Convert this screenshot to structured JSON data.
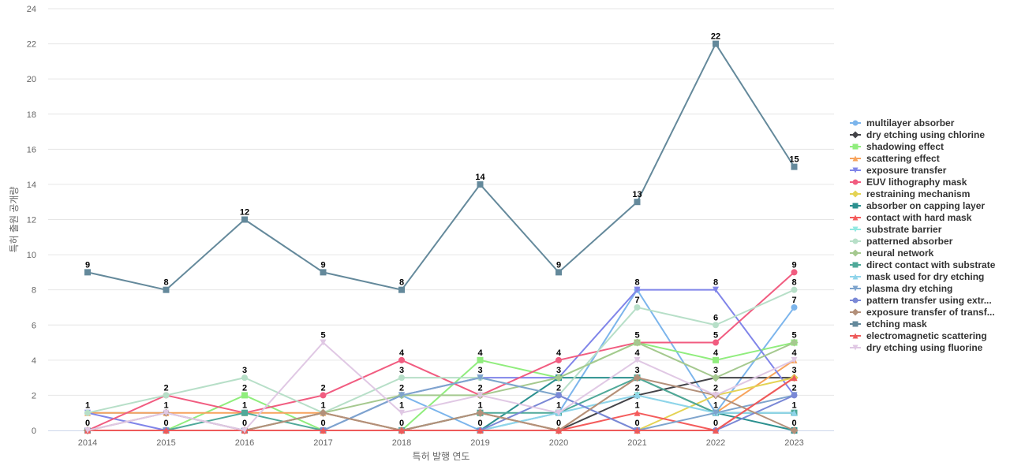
{
  "chart_data": {
    "type": "line",
    "xlabel": "특허 발행 연도",
    "ylabel": "특허 출원 공개량",
    "x": [
      "2014",
      "2015",
      "2016",
      "2017",
      "2018",
      "2019",
      "2020",
      "2021",
      "2022",
      "2023"
    ],
    "ylim": [
      0,
      24
    ],
    "yticks": [
      "0",
      "2",
      "4",
      "6",
      "8",
      "10",
      "12",
      "14",
      "16",
      "18",
      "20",
      "22",
      "24"
    ],
    "grid": true,
    "legend_position": "right",
    "series": [
      {
        "name": "multilayer absorber",
        "values": [
          1,
          1,
          0,
          0,
          2,
          0,
          1,
          8,
          1,
          7
        ],
        "color": "#7cb5ec",
        "marker": "circle"
      },
      {
        "name": "dry etching using chlorine",
        "values": [
          0,
          0,
          0,
          1,
          0,
          1,
          0,
          2,
          3,
          3
        ],
        "color": "#434348",
        "marker": "diamond"
      },
      {
        "name": "shadowing effect",
        "values": [
          0,
          0,
          2,
          0,
          0,
          4,
          3,
          5,
          4,
          5
        ],
        "color": "#90ed7d",
        "marker": "square"
      },
      {
        "name": "scattering effect",
        "values": [
          1,
          1,
          1,
          1,
          0,
          1,
          0,
          3,
          1,
          4
        ],
        "color": "#f7a35c",
        "marker": "triangle"
      },
      {
        "name": "exposure transfer",
        "values": [
          1,
          0,
          0,
          0,
          2,
          3,
          3,
          8,
          8,
          2
        ],
        "color": "#8085e9",
        "marker": "triangle-down"
      },
      {
        "name": "EUV lithography mask",
        "values": [
          0,
          2,
          1,
          2,
          4,
          2,
          4,
          5,
          5,
          9
        ],
        "color": "#f15c80",
        "marker": "circle"
      },
      {
        "name": "restraining mechanism",
        "values": [
          0,
          0,
          0,
          0,
          0,
          0,
          0,
          0,
          2,
          3
        ],
        "color": "#e4d354",
        "marker": "diamond"
      },
      {
        "name": "absorber on capping layer",
        "values": [
          0,
          0,
          0,
          0,
          0,
          0,
          3,
          3,
          1,
          0
        ],
        "color": "#2b908f",
        "marker": "square"
      },
      {
        "name": "contact with hard mask",
        "values": [
          0,
          0,
          0,
          0,
          0,
          0,
          0,
          1,
          0,
          3
        ],
        "color": "#f45b5b",
        "marker": "triangle"
      },
      {
        "name": "substrate barrier",
        "values": [
          0,
          0,
          0,
          0,
          0,
          0,
          1,
          2,
          1,
          1
        ],
        "color": "#91e8e1",
        "marker": "triangle-down"
      },
      {
        "name": "patterned absorber",
        "values": [
          1,
          2,
          3,
          1,
          3,
          3,
          2,
          7,
          6,
          8
        ],
        "color": "#b7dfc8",
        "marker": "circle"
      },
      {
        "name": "neural network",
        "values": [
          0,
          0,
          0,
          1,
          2,
          2,
          3,
          5,
          3,
          5
        ],
        "color": "#a5c98f",
        "marker": "diamond"
      },
      {
        "name": "direct contact with substrate",
        "values": [
          0,
          0,
          1,
          0,
          0,
          1,
          1,
          3,
          1,
          1
        ],
        "color": "#4fa999",
        "marker": "square"
      },
      {
        "name": "mask used for dry etching",
        "values": [
          0,
          0,
          0,
          0,
          0,
          0,
          1,
          2,
          1,
          1
        ],
        "color": "#8fd4ea",
        "marker": "triangle"
      },
      {
        "name": "plasma dry etching",
        "values": [
          0,
          0,
          0,
          0,
          2,
          3,
          2,
          0,
          1,
          2
        ],
        "color": "#7ea4cd",
        "marker": "triangle-down"
      },
      {
        "name": "pattern transfer using extr...",
        "values": [
          0,
          0,
          0,
          0,
          0,
          0,
          2,
          0,
          0,
          2
        ],
        "color": "#7a88d6",
        "marker": "circle"
      },
      {
        "name": "exposure transfer of transf...",
        "values": [
          0,
          1,
          0,
          1,
          0,
          1,
          0,
          3,
          2,
          0
        ],
        "color": "#b3907a",
        "marker": "diamond"
      },
      {
        "name": "etching mask",
        "values": [
          9,
          8,
          12,
          9,
          8,
          14,
          9,
          13,
          22,
          15
        ],
        "color": "#64899b",
        "marker": "square"
      },
      {
        "name": "electromagnetic scattering",
        "values": [
          0,
          0,
          0,
          0,
          0,
          0,
          0,
          0,
          0,
          3
        ],
        "color": "#ee5a5a",
        "marker": "triangle"
      },
      {
        "name": "dry etching using fluorine",
        "values": [
          0,
          1,
          0,
          5,
          1,
          2,
          1,
          4,
          2,
          4
        ],
        "color": "#e0c8e4",
        "marker": "triangle-down"
      }
    ],
    "data_labels": [
      {
        "x": "2014",
        "labels": [
          "9",
          "1",
          "0"
        ]
      },
      {
        "x": "2015",
        "labels": [
          "8",
          "2",
          "1",
          "0"
        ]
      },
      {
        "x": "2016",
        "labels": [
          "12",
          "3",
          "2",
          "1",
          "0"
        ]
      },
      {
        "x": "2017",
        "labels": [
          "9",
          "5",
          "2",
          "1",
          "0"
        ]
      },
      {
        "x": "2018",
        "labels": [
          "8",
          "4",
          "3",
          "2",
          "1",
          "0"
        ]
      },
      {
        "x": "2019",
        "labels": [
          "14",
          "4",
          "3",
          "2",
          "1",
          "0"
        ]
      },
      {
        "x": "2020",
        "labels": [
          "9",
          "4",
          "3",
          "2",
          "1",
          "0"
        ]
      },
      {
        "x": "2021",
        "labels": [
          "13",
          "8",
          "7",
          "5",
          "4",
          "3",
          "2",
          "1",
          "0"
        ]
      },
      {
        "x": "2022",
        "labels": [
          "22",
          "8",
          "6",
          "5",
          "4",
          "3",
          "2",
          "1",
          "0"
        ]
      },
      {
        "x": "2023",
        "labels": [
          "15",
          "9",
          "8",
          "7",
          "5",
          "4",
          "3",
          "2",
          "1",
          "0"
        ]
      }
    ]
  }
}
